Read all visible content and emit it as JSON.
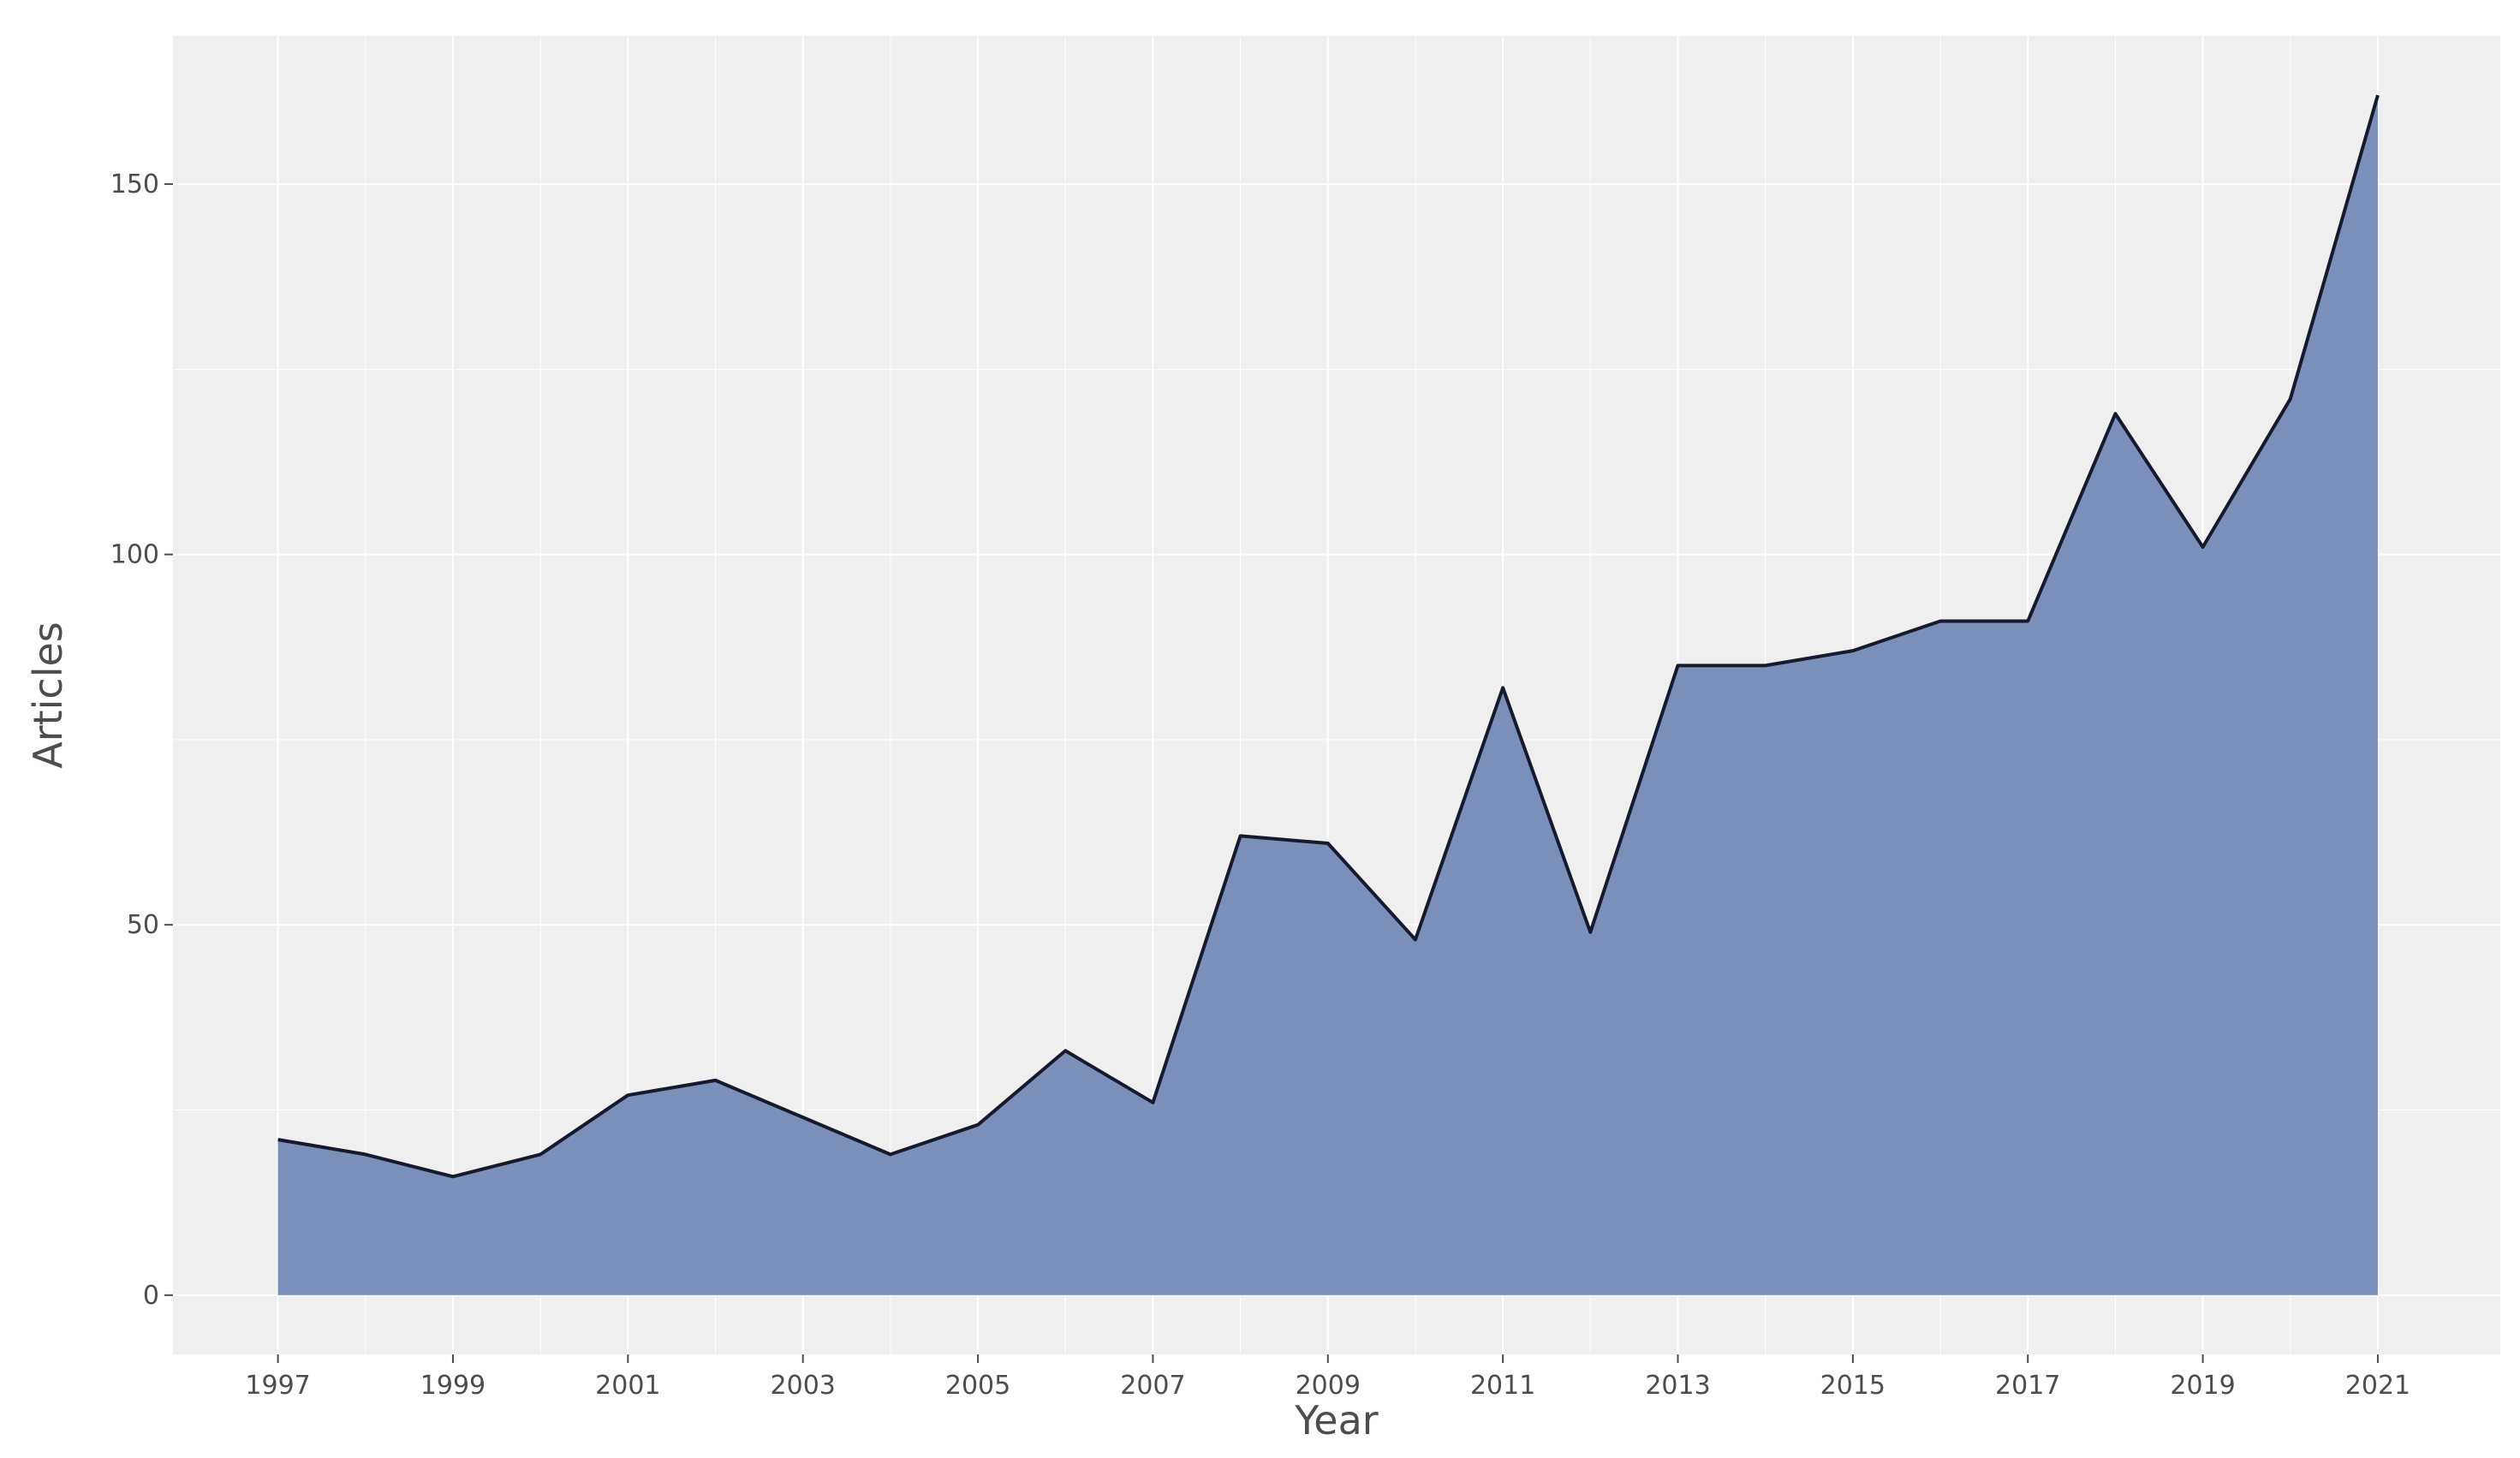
{
  "chart_data": {
    "type": "area",
    "title": "",
    "xlabel": "Year",
    "ylabel": "Articles",
    "x": [
      1997,
      1998,
      1999,
      2000,
      2001,
      2002,
      2003,
      2004,
      2005,
      2006,
      2007,
      2008,
      2009,
      2010,
      2011,
      2012,
      2013,
      2014,
      2015,
      2016,
      2017,
      2018,
      2019,
      2020,
      2021
    ],
    "series": [
      {
        "values": [
          21,
          19,
          16,
          19,
          27,
          29,
          24,
          19,
          23,
          33,
          26,
          62,
          61,
          48,
          82,
          49,
          85,
          85,
          87,
          91,
          91,
          119,
          101,
          121,
          162
        ]
      }
    ],
    "xticks": [
      "1997",
      "1999",
      "2001",
      "2003",
      "2005",
      "2007",
      "2009",
      "2011",
      "2013",
      "2015",
      "2017",
      "2019",
      "2021"
    ],
    "yticks": [
      "0",
      "50",
      "100",
      "150"
    ],
    "xlim": [
      1995.8,
      2022.4
    ],
    "ylim": [
      -8,
      170
    ],
    "grid": true,
    "colors": {
      "fill": "#7a8fba",
      "line": "#151a2e",
      "panel": "#efefef",
      "grid": "#ffffff"
    }
  }
}
